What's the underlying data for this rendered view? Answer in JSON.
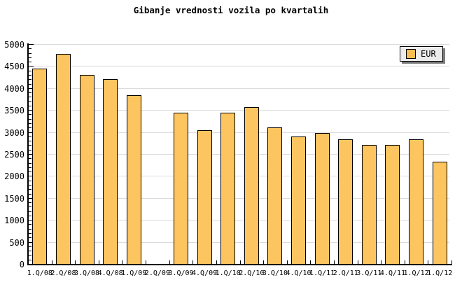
{
  "title": "Gibanje vrednosti vozila po kvartalih",
  "legend": {
    "label": "EUR"
  },
  "colors": {
    "background": "#FFFFFF",
    "bar_fill": "#FCC55F",
    "bar_border": "#000000",
    "gridline": "#DCDCDC",
    "axis": "#000000",
    "legend_bg": "#ECECEC",
    "legend_swatch": "#F8BE51",
    "text": "#000000"
  },
  "chart_data": {
    "type": "bar",
    "title": "Gibanje vrednosti vozila po kvartalih",
    "series_name": "EUR",
    "categories": [
      "1.Q/08",
      "2.Q/08",
      "3.Q/08",
      "4.Q/08",
      "1.Q/09",
      "2.Q/09",
      "3.Q/09",
      "4.Q/09",
      "1.Q/10",
      "2.Q/10",
      "3.Q/10",
      "4.Q/10",
      "1.Q/11",
      "2.Q/11",
      "3.Q/11",
      "4.Q/11",
      "1.Q/12",
      "1.Q/12"
    ],
    "values": [
      4440,
      4770,
      4300,
      4210,
      3830,
      null,
      3440,
      3040,
      3440,
      3570,
      3100,
      2900,
      2980,
      2830,
      2710,
      2710,
      2840,
      2320
    ],
    "missing_categories": [
      "2.Q/09"
    ],
    "xlabel": "",
    "ylabel": "",
    "ylim": [
      0,
      5000
    ],
    "ytick_step": 500,
    "ytick_minor_step": 100,
    "ytick_labels": [
      "0",
      "500",
      "1000",
      "1500",
      "2000",
      "2500",
      "3000",
      "3500",
      "4000",
      "4500",
      "5000"
    ],
    "grid": "horizontal",
    "legend_position": "top-right"
  }
}
